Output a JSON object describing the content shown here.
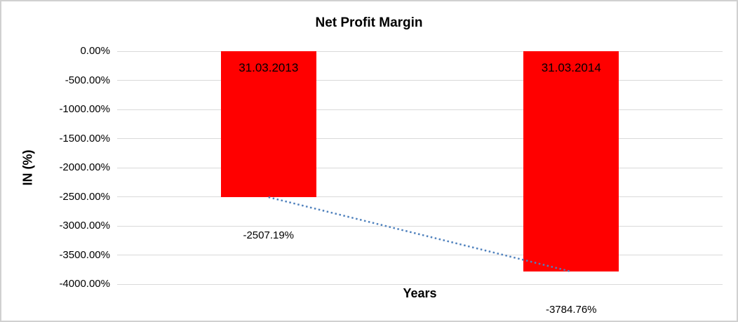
{
  "chart_data": {
    "type": "bar",
    "title": "Net Profit Margin",
    "xlabel": "Years",
    "ylabel": "IN (%)",
    "categories": [
      "31.03.2013",
      "31.03.2014"
    ],
    "values": [
      -2507.19,
      -3784.76
    ],
    "data_labels": [
      "-2507.19%",
      "-3784.76%"
    ],
    "ylim": [
      -4000,
      0
    ],
    "yticks": [
      "0.00%",
      "-500.00%",
      "-1000.00%",
      "-1500.00%",
      "-2000.00%",
      "-2500.00%",
      "-3000.00%",
      "-3500.00%",
      "-4000.00%"
    ],
    "grid": true,
    "legend": "none",
    "trendline": {
      "type": "linear",
      "style": "dotted",
      "connects": "bar end points"
    },
    "colors": {
      "bar": "#FF0000",
      "trendline": "#4F81BD",
      "gridline": "#D9D9D9",
      "frame_border": "#D0D0D0",
      "text": "#000000"
    }
  }
}
